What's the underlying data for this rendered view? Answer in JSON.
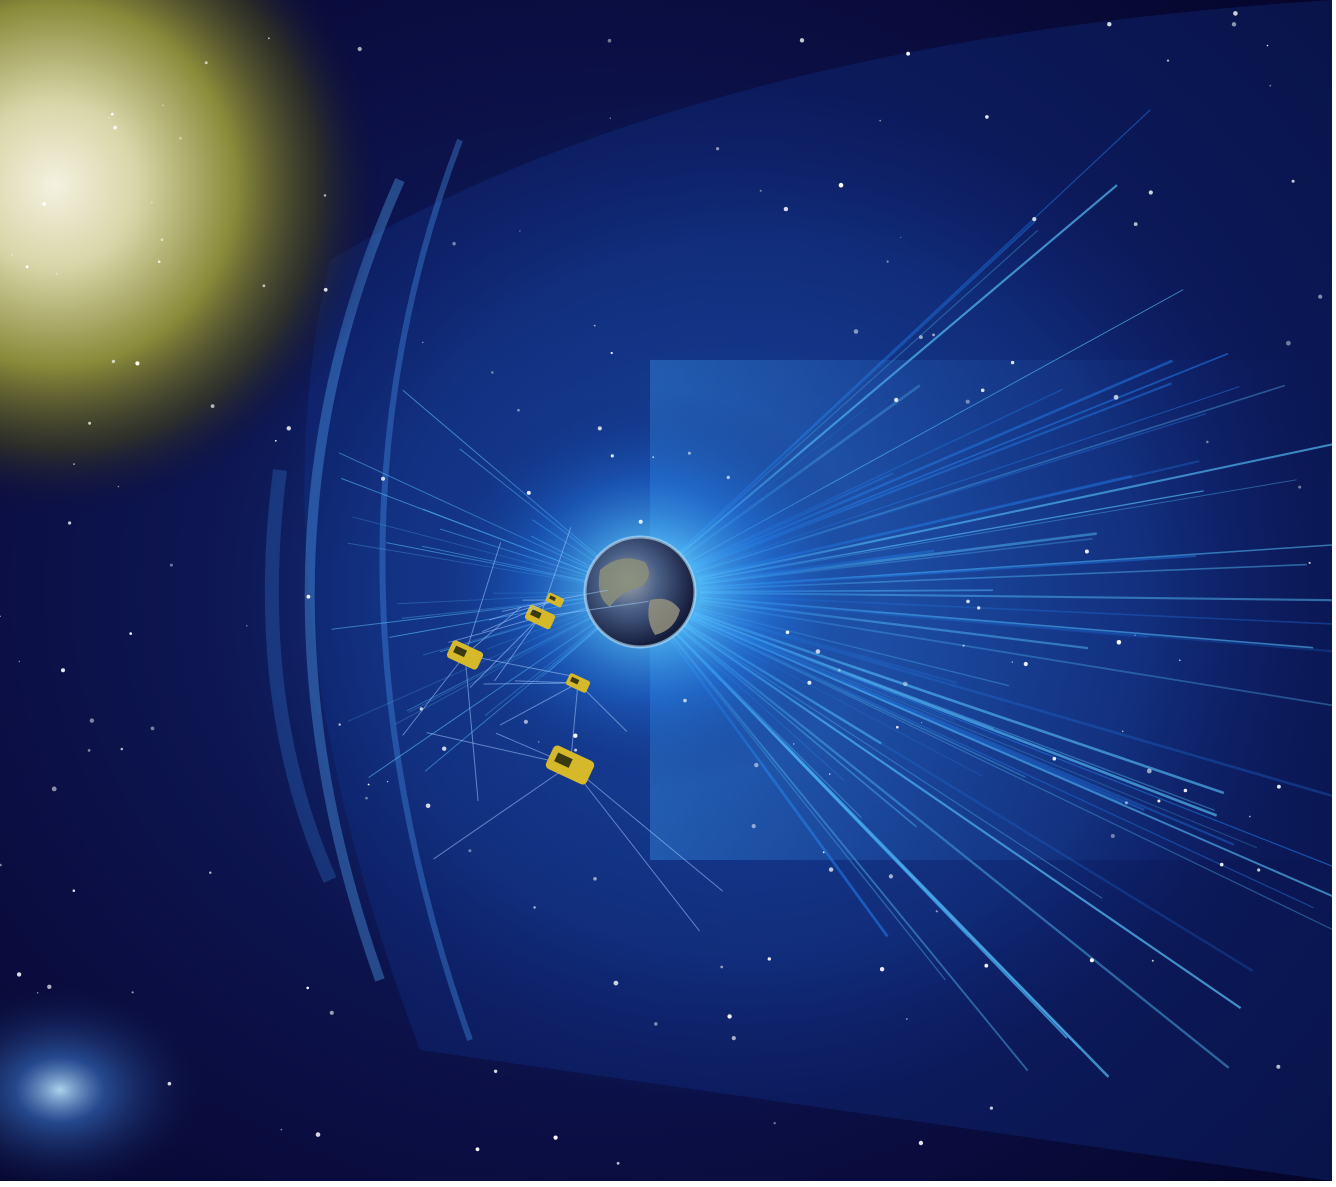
{
  "image": {
    "subject": "space-illustration",
    "elements": [
      "sun",
      "magnetosphere",
      "earth",
      "satellites",
      "stars",
      "galaxy"
    ],
    "colors": {
      "space": "#0b0b3a",
      "space_deep": "#05052a",
      "magnetosphere": "#1e6fd8",
      "magnetosphere_glow": "#5ac8ff",
      "sun_core": "#f4f1e0",
      "sun_halo": "#8a8a3a",
      "earth_ocean": "#2a3d6e",
      "earth_land": "#8a8f7a",
      "satellite_gold": "#d6b92a",
      "star": "#ffffff"
    },
    "satellite_count": 5
  }
}
